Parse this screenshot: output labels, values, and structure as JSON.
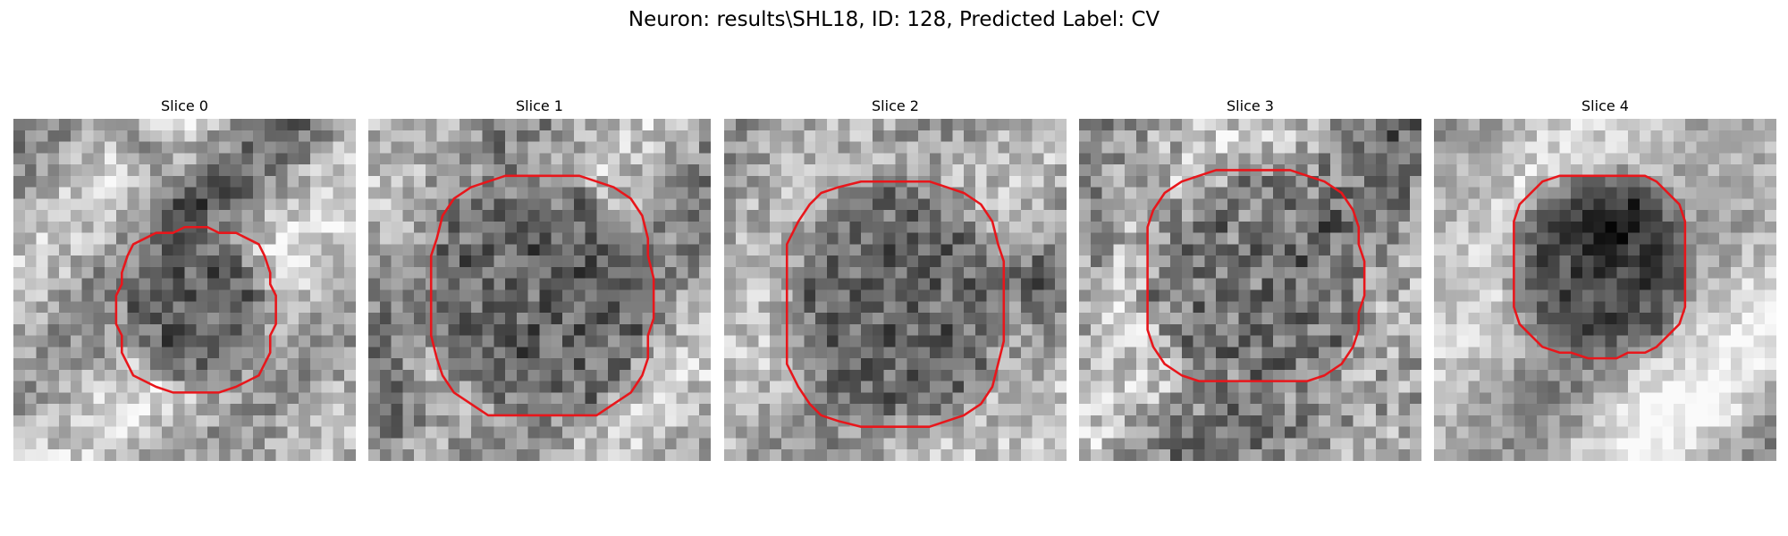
{
  "figure": {
    "title": "Neuron: results\\SHL18, ID: 128, Predicted Label: CV"
  },
  "colors": {
    "contour": "#e8161b",
    "background": "#ffffff"
  },
  "panels": [
    {
      "label": "Slice 0"
    },
    {
      "label": "Slice 1"
    },
    {
      "label": "Slice 2"
    },
    {
      "label": "Slice 3"
    },
    {
      "label": "Slice 4"
    }
  ]
}
